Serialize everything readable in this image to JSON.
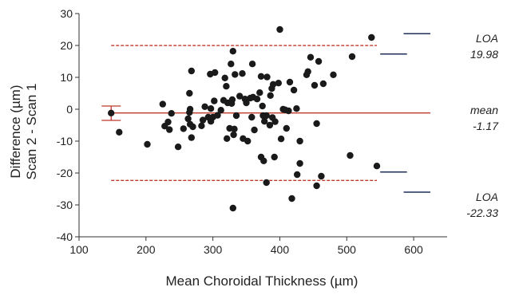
{
  "chart_data": {
    "type": "scatter",
    "title": "",
    "xlabel": "Mean Choroidal Thickness (µm)",
    "ylabel_lines": [
      "Difference (µm)",
      "Scan 2 - Scan 1"
    ],
    "xlim": [
      100,
      650
    ],
    "ylim": [
      -40,
      30
    ],
    "x_ticks": [
      100,
      200,
      300,
      400,
      500,
      600
    ],
    "y_ticks": [
      -40,
      -30,
      -20,
      -10,
      0,
      10,
      20,
      30
    ],
    "grid": false,
    "colors": {
      "points": "#1a1a1a",
      "mean_line": "#c0392b",
      "loa_line": "#c0392b",
      "ci_bar": "#c0392b",
      "annot_line": "#1f2f5a",
      "axis": "#333333"
    },
    "mean": -1.17,
    "upper_loa": 19.98,
    "lower_loa": -22.33,
    "ci_bars": [
      {
        "x": 148,
        "center": -1.17,
        "low": -3.5,
        "high": 1.0
      }
    ],
    "annotations": [
      {
        "label": "LOA",
        "value": "19.98",
        "ci_low": 17.3,
        "ci_high": 23.7
      },
      {
        "label": "mean",
        "value": "-1.17"
      },
      {
        "label": "LOA",
        "value": "-22.33",
        "ci_low": -26.0,
        "ci_high": -19.7
      }
    ],
    "points": [
      [
        148,
        -1.2
      ],
      [
        160,
        -7.2
      ],
      [
        202,
        -11.0
      ],
      [
        225,
        1.6
      ],
      [
        228,
        -5.3
      ],
      [
        233,
        -4.0
      ],
      [
        235,
        -6.4
      ],
      [
        238,
        -1.3
      ],
      [
        248,
        -11.8
      ],
      [
        256,
        -6.1
      ],
      [
        263,
        -3.0
      ],
      [
        265,
        -1.0
      ],
      [
        265,
        5.0
      ],
      [
        266,
        0.0
      ],
      [
        266,
        -4.7
      ],
      [
        268,
        -8.9
      ],
      [
        268,
        12.0
      ],
      [
        270,
        -5.5
      ],
      [
        283,
        -5.2
      ],
      [
        285,
        -3.4
      ],
      [
        288,
        0.8
      ],
      [
        293,
        -2.5
      ],
      [
        296,
        -3.0
      ],
      [
        296,
        11.0
      ],
      [
        297,
        0.2
      ],
      [
        297,
        -3.8
      ],
      [
        300,
        -2.5
      ],
      [
        302,
        2.6
      ],
      [
        303,
        11.5
      ],
      [
        307,
        -1.9
      ],
      [
        312,
        -0.3
      ],
      [
        316,
        2.8
      ],
      [
        318,
        9.8
      ],
      [
        320,
        7.2
      ],
      [
        321,
        -9.2
      ],
      [
        322,
        2.0
      ],
      [
        325,
        -6.0
      ],
      [
        327,
        14.2
      ],
      [
        328,
        1.8
      ],
      [
        329,
        3.0
      ],
      [
        330,
        18.2
      ],
      [
        330,
        -31.0
      ],
      [
        331,
        -8.0
      ],
      [
        332,
        -6.2
      ],
      [
        333,
        10.9
      ],
      [
        335,
        -2.0
      ],
      [
        340,
        4.1
      ],
      [
        344,
        11.2
      ],
      [
        345,
        -9.2
      ],
      [
        348,
        3.2
      ],
      [
        350,
        2.0
      ],
      [
        352,
        -10.0
      ],
      [
        356,
        3.5
      ],
      [
        358,
        -2.5
      ],
      [
        359,
        14.2
      ],
      [
        360,
        3.8
      ],
      [
        362,
        -6.5
      ],
      [
        366,
        3.2
      ],
      [
        370,
        5.2
      ],
      [
        372,
        -15.0
      ],
      [
        372,
        10.3
      ],
      [
        374,
        1.0
      ],
      [
        375,
        -2.0
      ],
      [
        376,
        -16.2
      ],
      [
        377,
        -3.8
      ],
      [
        380,
        -23.0
      ],
      [
        380,
        -2.0
      ],
      [
        381,
        10.1
      ],
      [
        385,
        -5.0
      ],
      [
        386,
        4.3
      ],
      [
        388,
        6.5
      ],
      [
        389,
        -2.6
      ],
      [
        390,
        7.8
      ],
      [
        392,
        -15.0
      ],
      [
        393,
        -3.9
      ],
      [
        398,
        8.2
      ],
      [
        400,
        25.0
      ],
      [
        402,
        -9.3
      ],
      [
        405,
        0.0
      ],
      [
        408,
        -0.2
      ],
      [
        410,
        -6.0
      ],
      [
        413,
        -0.5
      ],
      [
        415,
        8.5
      ],
      [
        418,
        -28.0
      ],
      [
        421,
        6.0
      ],
      [
        425,
        0.2
      ],
      [
        426,
        -20.5
      ],
      [
        430,
        -17.0
      ],
      [
        430,
        -10.0
      ],
      [
        440,
        10.8
      ],
      [
        442,
        11.8
      ],
      [
        446,
        16.3
      ],
      [
        452,
        7.5
      ],
      [
        455,
        -4.5
      ],
      [
        455,
        -24.0
      ],
      [
        458,
        15.0
      ],
      [
        462,
        -21.0
      ],
      [
        465,
        8.0
      ],
      [
        480,
        10.8
      ],
      [
        505,
        -14.5
      ],
      [
        508,
        16.5
      ],
      [
        537,
        22.5
      ],
      [
        545,
        -17.8
      ]
    ]
  }
}
